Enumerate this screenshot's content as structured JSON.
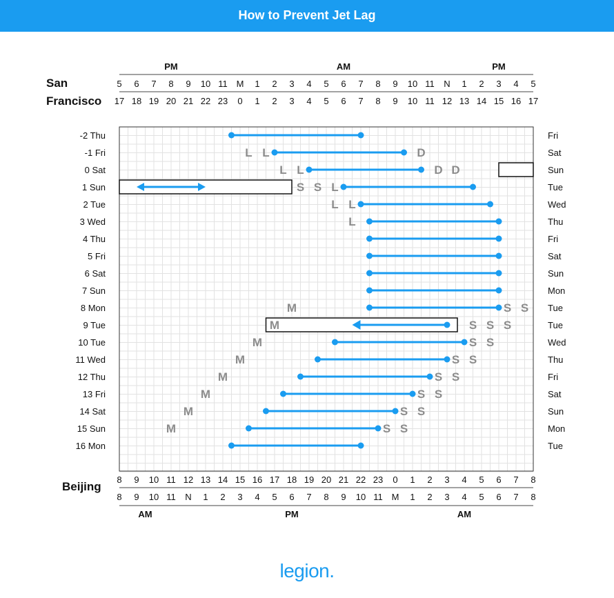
{
  "page": {
    "title": "How to Prevent Jet Lag",
    "brand": "legion."
  },
  "colors": {
    "header": "#1a9cf0",
    "line": "#1a9cf0",
    "letter": "#8c8c8c",
    "grid": "#e2e2e2"
  },
  "chart_data": {
    "type": "timeline",
    "title": "How to Prevent Jet Lag",
    "top_axis": {
      "label_line1": "San",
      "label_line2": "Francisco",
      "periods": [
        {
          "label": "PM",
          "at": 3
        },
        {
          "label": "AM",
          "at": 13
        },
        {
          "label": "PM",
          "at": 22
        }
      ],
      "ticks_12h": [
        "5",
        "6",
        "7",
        "8",
        "9",
        "10",
        "11",
        "M",
        "1",
        "2",
        "3",
        "4",
        "5",
        "6",
        "7",
        "8",
        "9",
        "10",
        "11",
        "N",
        "1",
        "2",
        "3",
        "4",
        "5"
      ],
      "ticks_24h": [
        "17",
        "18",
        "19",
        "20",
        "21",
        "22",
        "23",
        "0",
        "1",
        "2",
        "3",
        "4",
        "5",
        "6",
        "7",
        "8",
        "9",
        "10",
        "11",
        "12",
        "13",
        "14",
        "15",
        "16",
        "17"
      ]
    },
    "bottom_axis": {
      "label": "Beijing",
      "ticks_24h": [
        "8",
        "9",
        "10",
        "11",
        "12",
        "13",
        "14",
        "15",
        "16",
        "17",
        "18",
        "19",
        "20",
        "21",
        "22",
        "23",
        "0",
        "1",
        "2",
        "3",
        "4",
        "5",
        "6",
        "7",
        "8"
      ],
      "ticks_12h": [
        "8",
        "9",
        "10",
        "11",
        "N",
        "1",
        "2",
        "3",
        "4",
        "5",
        "6",
        "7",
        "8",
        "9",
        "10",
        "11",
        "M",
        "1",
        "2",
        "3",
        "4",
        "5",
        "6",
        "7",
        "8"
      ],
      "periods": [
        {
          "label": "AM",
          "at": 1.5
        },
        {
          "label": "PM",
          "at": 10
        },
        {
          "label": "AM",
          "at": 20
        }
      ]
    },
    "rows": [
      {
        "label": "-2 Thu",
        "right": "Fri",
        "sleep": [
          6.5,
          14
        ],
        "letters": []
      },
      {
        "label": "-1 Fri",
        "right": "Sat",
        "sleep": [
          9,
          16.5
        ],
        "letters": [
          {
            "t": "L",
            "x": 7.5
          },
          {
            "t": "L",
            "x": 8.5
          },
          {
            "t": "D",
            "x": 17.5
          }
        ]
      },
      {
        "label": "0 Sat",
        "right": "Sun",
        "sleep": [
          11,
          17.5
        ],
        "letters": [
          {
            "t": "L",
            "x": 9.5
          },
          {
            "t": "L",
            "x": 10.5
          },
          {
            "t": "D",
            "x": 18.5
          },
          {
            "t": "D",
            "x": 19.5
          }
        ]
      },
      {
        "label": "1 Sun",
        "right": "Tue",
        "sleep": [
          13,
          20.5
        ],
        "letters": [
          {
            "t": "S",
            "x": 10.5
          },
          {
            "t": "S",
            "x": 11.5
          },
          {
            "t": "L",
            "x": 12.5
          }
        ]
      },
      {
        "label": "2 Tue",
        "right": "Wed",
        "sleep": [
          14,
          21.5
        ],
        "letters": [
          {
            "t": "L",
            "x": 12.5
          },
          {
            "t": "L",
            "x": 13.5
          }
        ]
      },
      {
        "label": "3 Wed",
        "right": "Thu",
        "sleep": [
          14.5,
          22
        ],
        "letters": [
          {
            "t": "L",
            "x": 13.5
          }
        ]
      },
      {
        "label": "4 Thu",
        "right": "Fri",
        "sleep": [
          14.5,
          22
        ],
        "letters": []
      },
      {
        "label": "5 Fri",
        "right": "Sat",
        "sleep": [
          14.5,
          22
        ],
        "letters": []
      },
      {
        "label": "6 Sat",
        "right": "Sun",
        "sleep": [
          14.5,
          22
        ],
        "letters": []
      },
      {
        "label": "7 Sun",
        "right": "Mon",
        "sleep": [
          14.5,
          22
        ],
        "letters": []
      },
      {
        "label": "8 Mon",
        "right": "Tue",
        "sleep": [
          14.5,
          22
        ],
        "letters": [
          {
            "t": "M",
            "x": 10
          },
          {
            "t": "S",
            "x": 22.5
          },
          {
            "t": "S",
            "x": 23.5
          }
        ]
      },
      {
        "label": "9 Tue",
        "right": "Tue",
        "sleep": [
          19,
          13.5
        ],
        "arrow": "left",
        "letters": [
          {
            "t": "M",
            "x": 9
          },
          {
            "t": "S",
            "x": 20.5
          },
          {
            "t": "S",
            "x": 21.5
          },
          {
            "t": "S",
            "x": 22.5
          }
        ]
      },
      {
        "label": "10 Tue",
        "right": "Wed",
        "sleep": [
          12.5,
          20
        ],
        "letters": [
          {
            "t": "M",
            "x": 8
          },
          {
            "t": "S",
            "x": 20.5
          },
          {
            "t": "S",
            "x": 21.5
          }
        ]
      },
      {
        "label": "11 Wed",
        "right": "Thu",
        "sleep": [
          11.5,
          19
        ],
        "letters": [
          {
            "t": "M",
            "x": 7
          },
          {
            "t": "S",
            "x": 19.5
          },
          {
            "t": "S",
            "x": 20.5
          }
        ]
      },
      {
        "label": "12 Thu",
        "right": "Fri",
        "sleep": [
          10.5,
          18
        ],
        "letters": [
          {
            "t": "M",
            "x": 6
          },
          {
            "t": "S",
            "x": 18.5
          },
          {
            "t": "S",
            "x": 19.5
          }
        ]
      },
      {
        "label": "13 Fri",
        "right": "Sat",
        "sleep": [
          9.5,
          17
        ],
        "letters": [
          {
            "t": "M",
            "x": 5
          },
          {
            "t": "S",
            "x": 17.5
          },
          {
            "t": "S",
            "x": 18.5
          }
        ]
      },
      {
        "label": "14 Sat",
        "right": "Sun",
        "sleep": [
          8.5,
          16
        ],
        "letters": [
          {
            "t": "M",
            "x": 4
          },
          {
            "t": "S",
            "x": 16.5
          },
          {
            "t": "S",
            "x": 17.5
          }
        ]
      },
      {
        "label": "15 Sun",
        "right": "Mon",
        "sleep": [
          7.5,
          15
        ],
        "letters": [
          {
            "t": "M",
            "x": 3
          },
          {
            "t": "S",
            "x": 15.5
          },
          {
            "t": "S",
            "x": 16.5
          }
        ]
      },
      {
        "label": "16 Mon",
        "right": "Tue",
        "sleep": [
          6.5,
          14
        ],
        "letters": []
      }
    ],
    "flights": [
      {
        "row": 2,
        "from": 22,
        "to": 24,
        "arrow": "none"
      },
      {
        "row": 3,
        "from": 0,
        "to": 10,
        "arrow": "both",
        "arrow_from": 1,
        "arrow_to": 5
      },
      {
        "row": 11,
        "from": 8.5,
        "to": 19.6,
        "arrow": "none"
      }
    ]
  }
}
